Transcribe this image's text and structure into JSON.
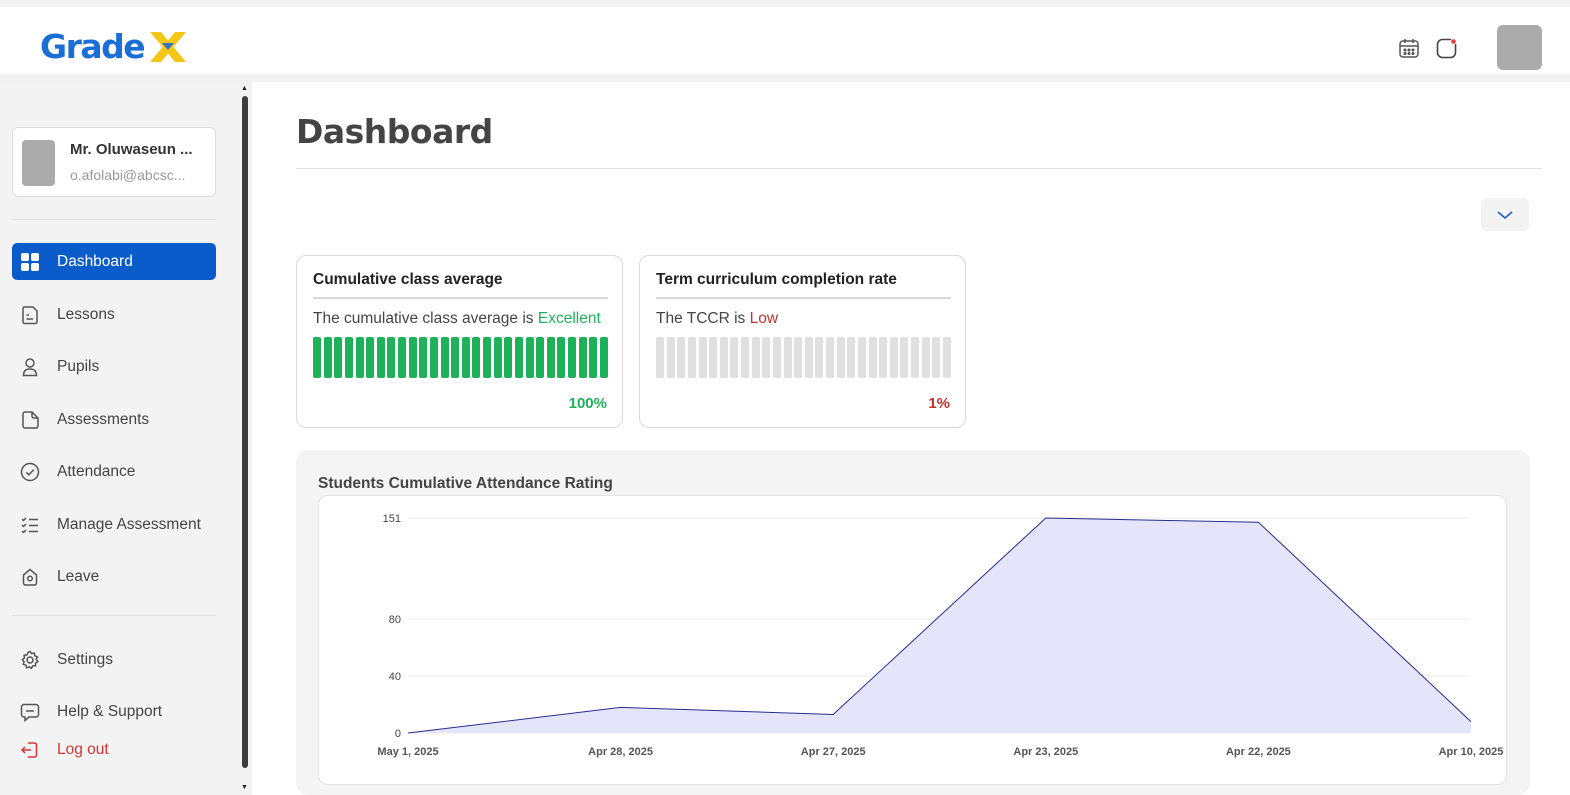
{
  "app": {
    "logo_text": "Grade"
  },
  "header": {
    "icons": [
      "calendar-icon",
      "notification-icon"
    ]
  },
  "profile": {
    "name": "Mr. Oluwaseun ...",
    "email": "o.afolabi@abcsc..."
  },
  "sidebar": {
    "items": [
      {
        "label": "Dashboard",
        "icon": "dashboard-icon",
        "active": true
      },
      {
        "label": "Lessons",
        "icon": "lessons-icon",
        "active": false
      },
      {
        "label": "Pupils",
        "icon": "pupils-icon",
        "active": false
      },
      {
        "label": "Assessments",
        "icon": "assessments-icon",
        "active": false
      },
      {
        "label": "Attendance",
        "icon": "attendance-icon",
        "active": false
      },
      {
        "label": "Manage Assessment",
        "icon": "manage-assessment-icon",
        "active": false
      },
      {
        "label": "Leave",
        "icon": "leave-icon",
        "active": false
      }
    ],
    "bottom_items": [
      {
        "label": "Settings",
        "icon": "gear-icon"
      },
      {
        "label": "Help & Support",
        "icon": "help-icon"
      },
      {
        "label": "Log out",
        "icon": "logout-icon"
      }
    ]
  },
  "main": {
    "title": "Dashboard",
    "cards": [
      {
        "title": "Cumulative class average",
        "message_prefix": "The cumulative class average is",
        "status": "Excellent",
        "percent_label": "100%",
        "fill_fraction": 1.0,
        "color": "#1fb15a"
      },
      {
        "title": "Term curriculum completion rate",
        "message_prefix": "The TCCR is",
        "status": "Low",
        "percent_label": "1%",
        "fill_fraction": 0.01,
        "color": "#c43131"
      }
    ]
  },
  "colors": {
    "brand_blue": "#1a6ed8",
    "brand_yellow": "#f5c518",
    "active_nav": "#0b5ccb",
    "chart_line": "#2b2b8f",
    "chart_fill": "#e4e5fb"
  },
  "chart_data": {
    "type": "area",
    "title": "Students Cumulative Attendance Rating",
    "x": [
      "May 1, 2025",
      "Apr 28, 2025",
      "Apr 27, 2025",
      "Apr 23, 2025",
      "Apr 22, 2025",
      "Apr 10, 2025"
    ],
    "series": [
      {
        "values": [
          0,
          18,
          13,
          151,
          148,
          8
        ]
      }
    ],
    "y_ticks": [
      0,
      40,
      80,
      151
    ],
    "ylim": [
      0,
      151
    ],
    "grid": true
  }
}
